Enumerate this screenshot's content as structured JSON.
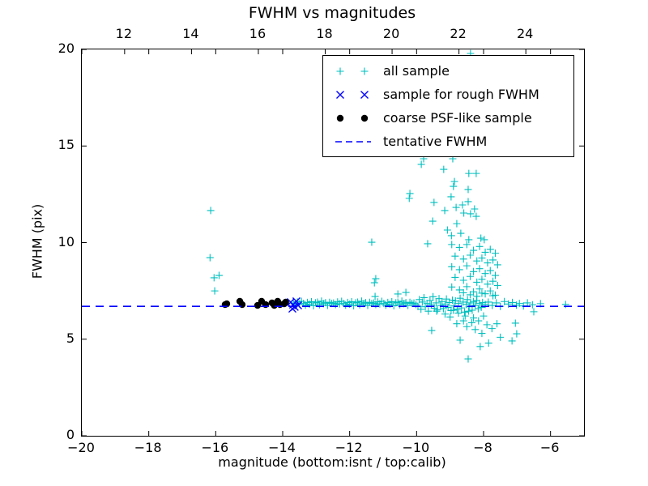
{
  "chart": {
    "title": "FWHM vs magnitudes",
    "background": "#ffffff",
    "x_axis_bottom": {
      "label": "magnitude (bottom:isnt / top:calib)",
      "min": -20,
      "max": -5,
      "ticks": [
        -20,
        -18,
        -16,
        -14,
        -12,
        -10,
        -8,
        -6
      ]
    },
    "x_axis_top": {
      "min": 10.72,
      "max": 25.74,
      "ticks": [
        12,
        14,
        16,
        18,
        20,
        22,
        24
      ]
    },
    "y_axis": {
      "label": "FWHM (pix)",
      "min": 0,
      "max": 20,
      "ticks": [
        0,
        5,
        10,
        15,
        20
      ]
    }
  },
  "legend": {
    "items": [
      {
        "label": "all sample",
        "marker": "plus",
        "color": "#00bfbf"
      },
      {
        "label": "sample for rough FWHM",
        "marker": "x",
        "color": "#0000ff"
      },
      {
        "label": "coarse PSF-like sample",
        "marker": "dot",
        "color": "#000000"
      },
      {
        "label": "tentative FWHM",
        "marker": "dashed",
        "color": "#0000ff"
      }
    ]
  },
  "chart_data": {
    "type": "scatter",
    "title": "FWHM vs magnitudes",
    "xlabel": "magnitude (bottom:isnt / top:calib)",
    "ylabel": "FWHM (pix)",
    "xlim": [
      -20,
      -5
    ],
    "ylim": [
      0,
      20
    ],
    "top_axis_lim": [
      10.72,
      25.74
    ],
    "grid": false,
    "legend_position": "upper right",
    "tentative_fwhm": 6.7,
    "series": [
      {
        "name": "all sample",
        "marker": "plus",
        "color": "#00bfbf",
        "points": [
          [
            -16.15,
            11.66
          ],
          [
            -16.17,
            9.22
          ],
          [
            -16.05,
            8.18
          ],
          [
            -15.9,
            8.3
          ],
          [
            -16.03,
            7.5
          ],
          [
            -13.68,
            6.87
          ],
          [
            -13.62,
            6.79
          ],
          [
            -13.56,
            6.93
          ],
          [
            -13.5,
            6.83
          ],
          [
            -13.44,
            6.96
          ],
          [
            -13.38,
            6.85
          ],
          [
            -13.32,
            6.76
          ],
          [
            -13.26,
            6.9
          ],
          [
            -13.2,
            6.81
          ],
          [
            -13.14,
            6.94
          ],
          [
            -13.08,
            6.73
          ],
          [
            -13.02,
            6.88
          ],
          [
            -12.96,
            6.92
          ],
          [
            -12.9,
            6.78
          ],
          [
            -12.84,
            6.97
          ],
          [
            -12.78,
            6.84
          ],
          [
            -12.72,
            6.89
          ],
          [
            -12.66,
            6.75
          ],
          [
            -12.6,
            6.91
          ],
          [
            -12.54,
            6.85
          ],
          [
            -12.48,
            6.87
          ],
          [
            -12.42,
            6.79
          ],
          [
            -12.36,
            6.93
          ],
          [
            -12.3,
            6.83
          ],
          [
            -12.24,
            6.96
          ],
          [
            -12.18,
            6.85
          ],
          [
            -12.12,
            6.76
          ],
          [
            -12.06,
            6.9
          ],
          [
            -12.0,
            6.81
          ],
          [
            -11.94,
            6.94
          ],
          [
            -11.88,
            6.73
          ],
          [
            -11.82,
            6.88
          ],
          [
            -11.76,
            6.92
          ],
          [
            -11.7,
            6.78
          ],
          [
            -11.64,
            6.97
          ],
          [
            -11.58,
            6.84
          ],
          [
            -11.52,
            6.89
          ],
          [
            -11.46,
            6.75
          ],
          [
            -11.4,
            6.91
          ],
          [
            -11.34,
            6.85
          ],
          [
            -11.28,
            6.87
          ],
          [
            -11.22,
            6.79
          ],
          [
            -11.16,
            6.93
          ],
          [
            -11.1,
            6.83
          ],
          [
            -11.04,
            6.96
          ],
          [
            -10.98,
            6.85
          ],
          [
            -10.92,
            6.76
          ],
          [
            -10.86,
            6.9
          ],
          [
            -10.8,
            6.81
          ],
          [
            -10.74,
            6.94
          ],
          [
            -10.68,
            6.73
          ],
          [
            -10.62,
            6.88
          ],
          [
            -10.56,
            6.92
          ],
          [
            -10.5,
            6.78
          ],
          [
            -10.44,
            6.97
          ],
          [
            -10.38,
            6.84
          ],
          [
            -10.32,
            6.89
          ],
          [
            -10.26,
            6.75
          ],
          [
            -10.2,
            6.91
          ],
          [
            -10.14,
            6.85
          ],
          [
            -10.08,
            6.87
          ],
          [
            -10.02,
            6.79
          ],
          [
            -9.96,
            6.7
          ],
          [
            -9.92,
            7.05
          ],
          [
            -9.87,
            6.55
          ],
          [
            -9.83,
            6.92
          ],
          [
            -9.78,
            7.15
          ],
          [
            -9.74,
            6.68
          ],
          [
            -9.69,
            6.85
          ],
          [
            -9.65,
            6.45
          ],
          [
            -9.6,
            7.0
          ],
          [
            -9.56,
            6.78
          ],
          [
            -9.51,
            7.2
          ],
          [
            -9.47,
            6.6
          ],
          [
            -9.42,
            6.88
          ],
          [
            -9.38,
            6.52
          ],
          [
            -9.33,
            7.1
          ],
          [
            -9.29,
            6.75
          ],
          [
            -9.24,
            6.95
          ],
          [
            -9.2,
            6.58
          ],
          [
            -9.15,
            6.82
          ],
          [
            -9.11,
            7.08
          ],
          [
            -9.06,
            6.65
          ],
          [
            -9.02,
            6.9
          ],
          [
            -8.97,
            6.48
          ],
          [
            -8.93,
            7.02
          ],
          [
            -8.88,
            6.72
          ],
          [
            -8.84,
            6.98
          ],
          [
            -8.79,
            6.55
          ],
          [
            -8.75,
            6.85
          ],
          [
            -8.7,
            7.12
          ],
          [
            -8.66,
            6.62
          ],
          [
            -8.61,
            6.92
          ],
          [
            -8.57,
            6.4
          ],
          [
            -8.52,
            6.8
          ],
          [
            -8.48,
            7.05
          ],
          [
            -8.43,
            6.68
          ],
          [
            -8.39,
            6.88
          ],
          [
            -8.34,
            6.5
          ],
          [
            -8.3,
            6.95
          ],
          [
            -8.25,
            6.75
          ],
          [
            -8.21,
            7.0
          ],
          [
            -8.16,
            6.58
          ],
          [
            -8.12,
            6.85
          ],
          [
            -8.07,
            6.65
          ],
          [
            -8.03,
            6.9
          ],
          [
            -7.95,
            6.8
          ],
          [
            -7.86,
            6.92
          ],
          [
            -7.74,
            6.75
          ],
          [
            -7.62,
            6.88
          ],
          [
            -7.5,
            6.7
          ],
          [
            -7.38,
            6.95
          ],
          [
            -7.26,
            6.82
          ],
          [
            -7.14,
            6.9
          ],
          [
            -7.02,
            6.76
          ],
          [
            -6.93,
            6.85
          ],
          [
            -6.81,
            6.72
          ],
          [
            -6.69,
            6.88
          ],
          [
            -6.54,
            6.78
          ],
          [
            -6.3,
            6.84
          ],
          [
            -5.55,
            6.8
          ],
          [
            -8.39,
            19.79
          ],
          [
            -9.79,
            14.34
          ],
          [
            -9.86,
            14.05
          ],
          [
            -9.19,
            13.79
          ],
          [
            -8.92,
            14.34
          ],
          [
            -8.44,
            13.58
          ],
          [
            -8.22,
            13.58
          ],
          [
            -8.87,
            13.16
          ],
          [
            -8.9,
            12.91
          ],
          [
            -8.46,
            12.75
          ],
          [
            -10.2,
            12.54
          ],
          [
            -10.22,
            12.29
          ],
          [
            -8.97,
            12.37
          ],
          [
            -9.48,
            12.08
          ],
          [
            -8.46,
            12.12
          ],
          [
            -8.82,
            11.82
          ],
          [
            -9.16,
            11.66
          ],
          [
            -8.63,
            11.95
          ],
          [
            -8.27,
            11.74
          ],
          [
            -8.59,
            11.53
          ],
          [
            -8.39,
            11.49
          ],
          [
            -8.22,
            11.36
          ],
          [
            -9.52,
            11.11
          ],
          [
            -8.8,
            10.98
          ],
          [
            -8.68,
            10.48
          ],
          [
            -9.08,
            10.65
          ],
          [
            -8.96,
            10.36
          ],
          [
            -8.44,
            10.15
          ],
          [
            -8.08,
            10.23
          ],
          [
            -7.98,
            10.15
          ],
          [
            -11.34,
            10.02
          ],
          [
            -9.67,
            9.94
          ],
          [
            -11.22,
            8.13
          ],
          [
            -10.32,
            7.42
          ],
          [
            -11.24,
            7.21
          ],
          [
            -11.26,
            7.92
          ],
          [
            -10.56,
            7.34
          ],
          [
            -8.95,
            9.9
          ],
          [
            -8.72,
            9.75
          ],
          [
            -8.5,
            9.9
          ],
          [
            -8.3,
            9.6
          ],
          [
            -8.12,
            9.8
          ],
          [
            -7.95,
            9.5
          ],
          [
            -7.8,
            9.65
          ],
          [
            -7.65,
            9.45
          ],
          [
            -8.85,
            9.3
          ],
          [
            -8.6,
            9.15
          ],
          [
            -8.4,
            9.35
          ],
          [
            -8.2,
            9.05
          ],
          [
            -8.05,
            9.2
          ],
          [
            -7.88,
            8.95
          ],
          [
            -7.72,
            9.1
          ],
          [
            -7.58,
            8.85
          ],
          [
            -8.95,
            8.75
          ],
          [
            -8.72,
            8.6
          ],
          [
            -8.5,
            8.8
          ],
          [
            -8.3,
            8.5
          ],
          [
            -8.12,
            8.65
          ],
          [
            -7.95,
            8.4
          ],
          [
            -7.8,
            8.55
          ],
          [
            -7.65,
            8.3
          ],
          [
            -8.85,
            8.2
          ],
          [
            -8.6,
            8.05
          ],
          [
            -8.4,
            8.25
          ],
          [
            -8.2,
            7.95
          ],
          [
            -8.05,
            8.1
          ],
          [
            -7.88,
            7.85
          ],
          [
            -7.72,
            8.0
          ],
          [
            -7.58,
            7.78
          ],
          [
            -8.95,
            7.7
          ],
          [
            -8.72,
            7.55
          ],
          [
            -8.5,
            7.72
          ],
          [
            -8.3,
            7.45
          ],
          [
            -8.12,
            7.6
          ],
          [
            -7.95,
            7.35
          ],
          [
            -7.8,
            7.5
          ],
          [
            -7.65,
            7.28
          ],
          [
            -8.6,
            7.4
          ],
          [
            -8.4,
            7.3
          ],
          [
            -8.2,
            7.22
          ],
          [
            -8.05,
            7.38
          ],
          [
            -7.72,
            7.25
          ],
          [
            -9.4,
            6.45
          ],
          [
            -9.15,
            6.3
          ],
          [
            -8.9,
            6.5
          ],
          [
            -9.0,
            6.15
          ],
          [
            -8.75,
            6.35
          ],
          [
            -8.55,
            6.2
          ],
          [
            -8.45,
            6.45
          ],
          [
            -8.3,
            6.1
          ],
          [
            -8.6,
            5.95
          ],
          [
            -8.8,
            5.8
          ],
          [
            -8.5,
            5.65
          ],
          [
            -8.35,
            5.85
          ],
          [
            -8.15,
            5.95
          ],
          [
            -8.0,
            6.2
          ],
          [
            -7.9,
            5.75
          ],
          [
            -8.25,
            5.5
          ],
          [
            -8.05,
            5.3
          ],
          [
            -7.75,
            5.55
          ],
          [
            -7.6,
            5.8
          ],
          [
            -9.55,
            5.45
          ],
          [
            -8.7,
            4.95
          ],
          [
            -7.85,
            4.8
          ],
          [
            -8.1,
            4.62
          ],
          [
            -7.5,
            5.1
          ],
          [
            -7.05,
            5.83
          ],
          [
            -7.01,
            5.28
          ],
          [
            -7.15,
            4.91
          ],
          [
            -6.5,
            6.42
          ],
          [
            -8.46,
            3.98
          ]
        ]
      },
      {
        "name": "sample for rough FWHM",
        "marker": "x",
        "color": "#0000ff",
        "points": [
          [
            -13.76,
            6.92
          ],
          [
            -13.69,
            6.79
          ],
          [
            -13.64,
            6.67
          ],
          [
            -13.59,
            6.96
          ],
          [
            -13.54,
            6.75
          ],
          [
            -13.71,
            6.58
          ]
        ]
      },
      {
        "name": "coarse PSF-like sample",
        "marker": "dot",
        "color": "#000000",
        "points": [
          [
            -15.72,
            6.79
          ],
          [
            -15.67,
            6.83
          ],
          [
            -15.28,
            6.96
          ],
          [
            -15.21,
            6.79
          ],
          [
            -14.75,
            6.75
          ],
          [
            -14.63,
            6.96
          ],
          [
            -14.51,
            6.79
          ],
          [
            -14.32,
            6.88
          ],
          [
            -14.25,
            6.75
          ],
          [
            -14.15,
            6.96
          ],
          [
            -14.08,
            6.79
          ],
          [
            -13.96,
            6.83
          ],
          [
            -13.91,
            6.92
          ]
        ]
      },
      {
        "name": "tentative FWHM",
        "marker": "dashed",
        "type": "hline",
        "color": "#0000ff",
        "y": 6.7
      }
    ]
  }
}
